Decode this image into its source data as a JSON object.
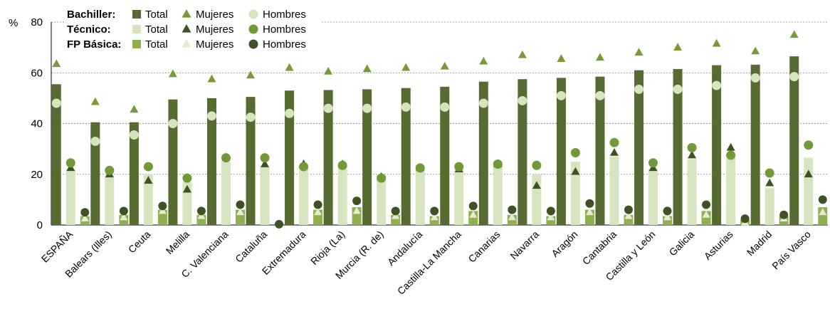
{
  "chart_data": {
    "type": "bar",
    "ylabel": "%",
    "ylim": [
      0,
      80
    ],
    "yticks": [
      0,
      20,
      40,
      60,
      80
    ],
    "grid": true,
    "legend_position": "top-left",
    "legend": {
      "groups": [
        {
          "label": "Bachiller:",
          "items": [
            "Total",
            "Mujeres",
            "Hombres"
          ]
        },
        {
          "label": "Técnico:",
          "items": [
            "Total",
            "Mujeres",
            "Hombres"
          ]
        },
        {
          "label": "FP Básica:",
          "items": [
            "Total",
            "Mujeres",
            "Hombres"
          ]
        }
      ]
    },
    "colors": {
      "bach_total": "#556b2f",
      "bach_mujeres": "#7a9a3a",
      "bach_hombres": "#d6e4bf",
      "tec_total": "#d6e4bf",
      "tec_mujeres": "#3e5226",
      "tec_hombres": "#6f9a36",
      "fp_total": "#8fb04f",
      "fp_mujeres": "#e4edd2",
      "fp_hombres": "#3e5226"
    },
    "categories": [
      "ESPAÑA",
      "Balears (Illes)",
      "Ceuta",
      "Melilla",
      "C. Valenciana",
      "Cataluña",
      "Extremadura",
      "Rioja (La)",
      "Murcia (R. de)",
      "Andalucía",
      "Castilla-La Mancha",
      "Canarias",
      "Navarra",
      "Aragón",
      "Cantabria",
      "Castilla y León",
      "Galicia",
      "Asturias",
      "Madrid",
      "País Vasco"
    ],
    "series": [
      {
        "name": "Bachiller Total",
        "kind": "bar",
        "values": [
          55.5,
          40.5,
          40.5,
          49.5,
          50,
          50.5,
          53,
          53.2,
          53.5,
          54,
          54.5,
          56.5,
          57.5,
          58,
          58.5,
          61,
          61.5,
          63,
          63.2,
          66.5
        ]
      },
      {
        "name": "Bachiller Mujeres",
        "kind": "triangle",
        "values": [
          63.5,
          48.5,
          45.5,
          59.5,
          57.5,
          59,
          62,
          60.5,
          61.5,
          62,
          62.5,
          64.5,
          67,
          65.5,
          66,
          68,
          70,
          71.5,
          68.5,
          75
        ]
      },
      {
        "name": "Bachiller Hombres",
        "kind": "circle",
        "values": [
          48,
          33,
          35.5,
          40,
          43,
          42.5,
          44,
          46,
          46,
          46.5,
          46.5,
          48,
          49,
          51,
          51,
          53.5,
          53.5,
          55,
          58,
          58.5
        ]
      },
      {
        "name": "Técnico Total",
        "kind": "bar",
        "values": [
          22,
          19.5,
          20,
          17,
          25,
          23,
          23,
          23.5,
          19.5,
          22,
          22,
          23.5,
          20,
          25,
          27,
          22,
          26,
          26.5,
          14.5,
          26.5
        ]
      },
      {
        "name": "Técnico Mujeres",
        "kind": "triangle",
        "values": [
          22.5,
          20,
          17.5,
          14,
          26.5,
          24,
          24,
          24,
          19,
          22.5,
          22,
          24,
          15.5,
          21,
          28.5,
          22.5,
          27.5,
          30.5,
          16.5,
          20
        ]
      },
      {
        "name": "Técnico Hombres",
        "kind": "circle",
        "values": [
          24.5,
          21.5,
          23,
          18.5,
          26.5,
          26.5,
          23,
          23.5,
          18.5,
          22.5,
          23,
          24,
          23.5,
          28.5,
          32.5,
          24.5,
          30.5,
          27.5,
          20.5,
          31.5
        ]
      },
      {
        "name": "FP Básica Total",
        "kind": "bar",
        "values": [
          3.5,
          4,
          6,
          4,
          6,
          0.5,
          6,
          7,
          4,
          3.5,
          5.5,
          4,
          3.5,
          6,
          4,
          3.5,
          5.5,
          2,
          3.5,
          7
        ]
      },
      {
        "name": "FP Básica Mujeres",
        "kind": "triangle",
        "values": [
          2.5,
          3,
          5.5,
          3.5,
          5,
          0.5,
          5,
          5.5,
          3.5,
          3,
          4,
          3,
          3,
          5,
          3.5,
          3,
          4,
          1,
          2.5,
          5
        ]
      },
      {
        "name": "FP Básica Hombres",
        "kind": "circle",
        "values": [
          5,
          5.5,
          7.5,
          5.5,
          8,
          0.3,
          8,
          9.5,
          5.5,
          5.5,
          7.5,
          6,
          5.5,
          8.5,
          6,
          5.5,
          8,
          2.5,
          4,
          10
        ]
      }
    ]
  }
}
